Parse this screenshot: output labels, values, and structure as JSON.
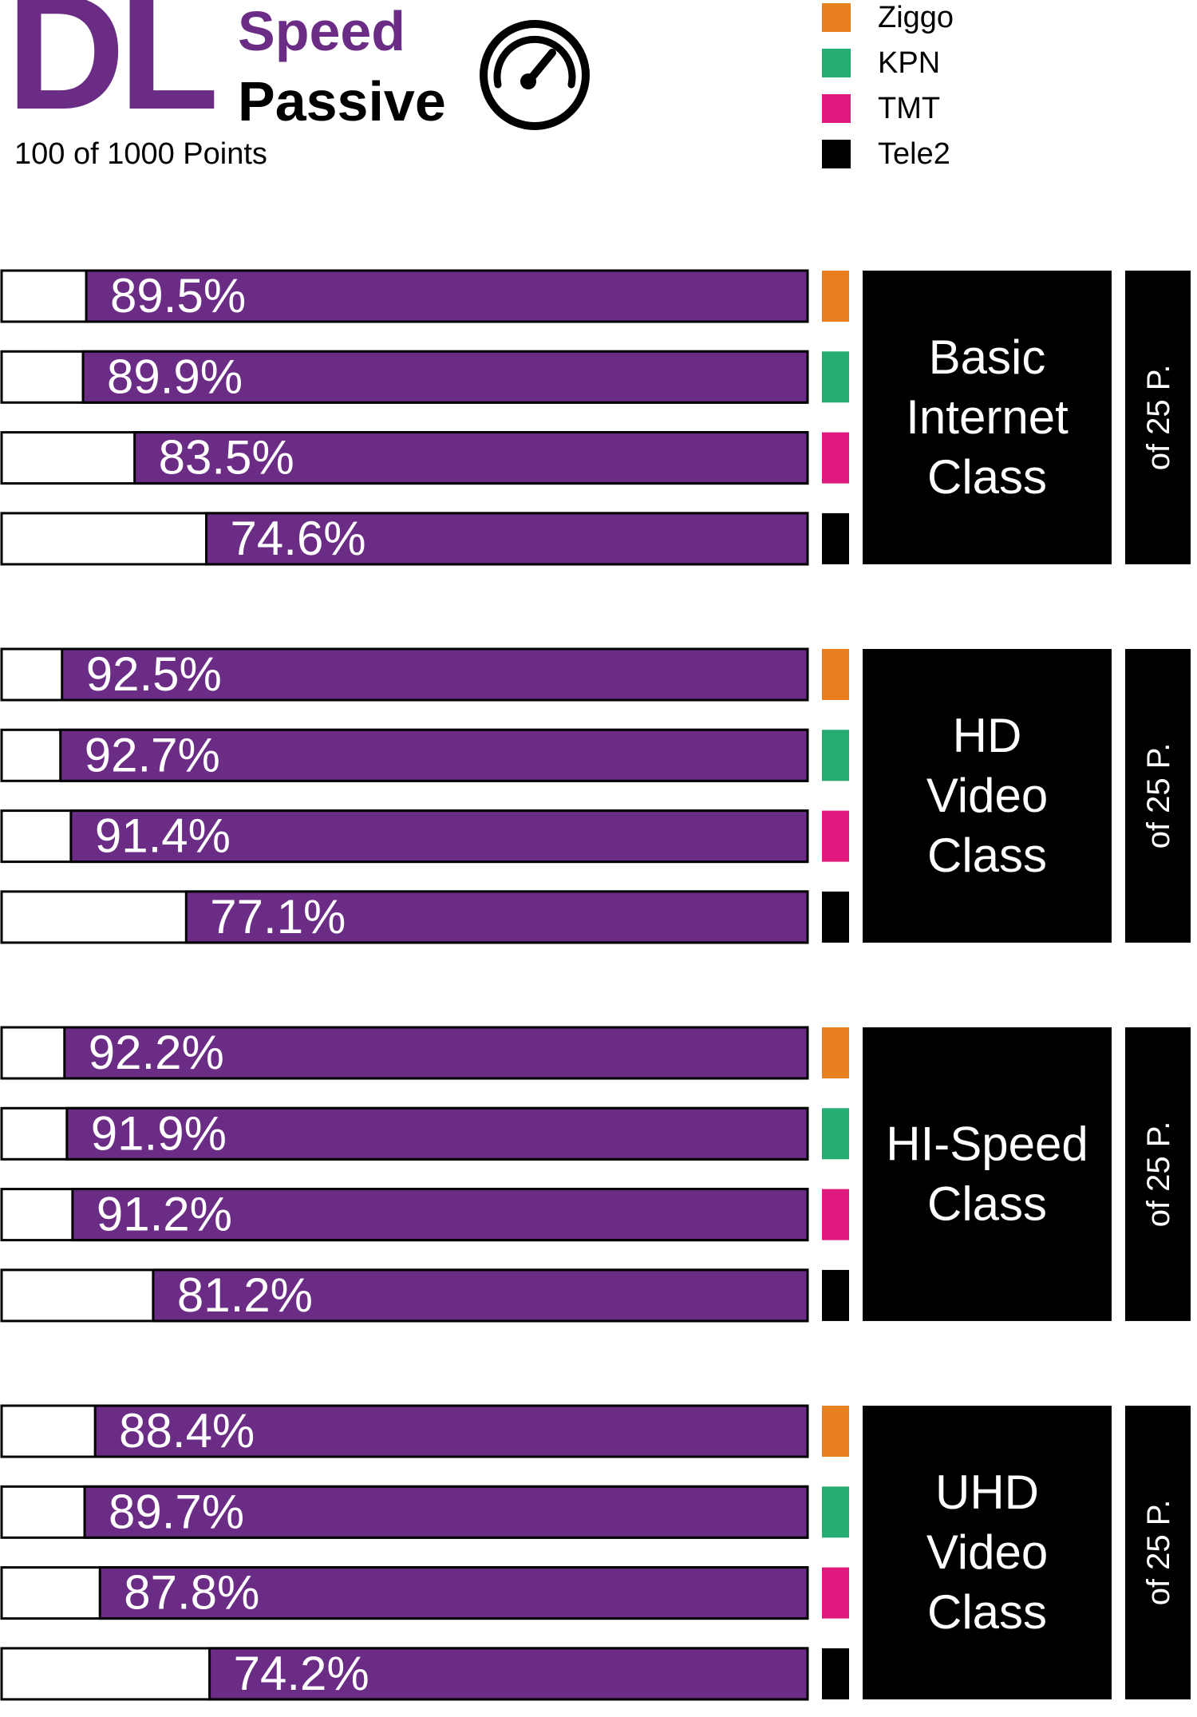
{
  "header": {
    "abbr": "DL",
    "title_line1": "Speed",
    "title_line2": "Passive",
    "subtitle": "100 of 1000 Points",
    "icon": "speedometer-icon"
  },
  "legend": [
    {
      "label": "Ziggo",
      "color": "#e8801f"
    },
    {
      "label": "KPN",
      "color": "#25ad71"
    },
    {
      "label": "TMT",
      "color": "#e0197f"
    },
    {
      "label": "Tele2",
      "color": "#000000"
    }
  ],
  "colors": {
    "bar": "#6b2c85",
    "bar_bg": "#ffffff",
    "panel": "#000000",
    "panel_text": "#ffffff"
  },
  "chart_data": {
    "type": "bar",
    "orientation": "horizontal",
    "title": "DL Speed Passive",
    "subtitle": "100 of 1000 Points",
    "value_unit": "%",
    "xlim": [
      0,
      100
    ],
    "series_names": [
      "Ziggo",
      "KPN",
      "TMT",
      "Tele2"
    ],
    "groups": [
      {
        "name_lines": [
          "Basic",
          "Internet",
          "Class"
        ],
        "points_label": "of 25 P.",
        "values": [
          89.5,
          89.9,
          83.5,
          74.6
        ]
      },
      {
        "name_lines": [
          "HD",
          "Video",
          "Class"
        ],
        "points_label": "of 25 P.",
        "values": [
          92.5,
          92.7,
          91.4,
          77.1
        ]
      },
      {
        "name_lines": [
          "HI-Speed",
          "Class"
        ],
        "points_label": "of 25 P.",
        "values": [
          92.2,
          91.9,
          91.2,
          81.2
        ]
      },
      {
        "name_lines": [
          "UHD",
          "Video",
          "Class"
        ],
        "points_label": "of 25 P.",
        "values": [
          88.4,
          89.7,
          87.8,
          74.2
        ]
      }
    ]
  }
}
